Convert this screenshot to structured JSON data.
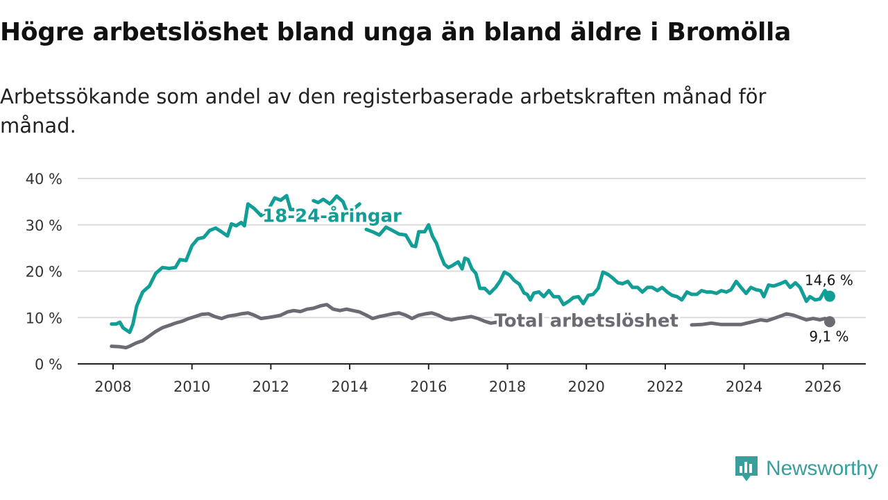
{
  "title": "Högre arbetslöshet bland unga än bland äldre i Bromölla",
  "subtitle": "Arbetssökande som andel av den registerbaserade arbetskraften månad för månad.",
  "brand": "Newsworthy",
  "colors": {
    "youth": "#119e96",
    "total": "#6e6a73",
    "grid": "#dcdcdc",
    "axis": "#222222",
    "brand": "#3a9e9b"
  },
  "chart_data": {
    "type": "line",
    "xlim": [
      2008,
      2026.8
    ],
    "ylim": [
      0,
      40
    ],
    "x_ticks": [
      2008,
      2010,
      2012,
      2014,
      2016,
      2018,
      2020,
      2022,
      2024,
      2026
    ],
    "x_tick_labels": [
      "2008",
      "2010",
      "2012",
      "2014",
      "2016",
      "2018",
      "2020",
      "2022",
      "2024",
      "2026"
    ],
    "y_ticks": [
      0,
      10,
      20,
      30,
      40
    ],
    "y_tick_labels": [
      "0 %",
      "10 %",
      "20 %",
      "30 %",
      "40 %"
    ],
    "series": [
      {
        "name": "18-24-åringar",
        "label": "18-24-åringar",
        "end_label": "14,6 %",
        "points": [
          [
            2007.96,
            8.6
          ],
          [
            2008.08,
            8.6
          ],
          [
            2008.17,
            9.0
          ],
          [
            2008.25,
            7.8
          ],
          [
            2008.42,
            6.8
          ],
          [
            2008.5,
            8.5
          ],
          [
            2008.6,
            12.5
          ],
          [
            2008.75,
            15.5
          ],
          [
            2008.92,
            16.8
          ],
          [
            2009.08,
            19.5
          ],
          [
            2009.25,
            20.8
          ],
          [
            2009.42,
            20.6
          ],
          [
            2009.58,
            20.8
          ],
          [
            2009.7,
            22.5
          ],
          [
            2009.85,
            22.3
          ],
          [
            2010.0,
            25.5
          ],
          [
            2010.15,
            27.0
          ],
          [
            2010.3,
            27.3
          ],
          [
            2010.45,
            28.8
          ],
          [
            2010.6,
            29.3
          ],
          [
            2010.75,
            28.5
          ],
          [
            2010.9,
            27.6
          ],
          [
            2011.0,
            30.2
          ],
          [
            2011.12,
            29.8
          ],
          [
            2011.25,
            30.5
          ],
          [
            2011.33,
            29.8
          ],
          [
            2011.42,
            34.5
          ],
          [
            2011.58,
            33.5
          ],
          [
            2011.75,
            32.0
          ],
          [
            2011.92,
            33.0
          ],
          [
            2012.1,
            35.8
          ],
          [
            2012.25,
            35.3
          ],
          [
            2012.4,
            36.3
          ],
          [
            2012.5,
            33.3
          ],
          [
            2012.62,
            33.3
          ],
          [
            2012.75,
            31.5
          ],
          [
            2012.9,
            31.3
          ]
        ],
        "points_2": [
          [
            2013.08,
            35.2
          ],
          [
            2013.2,
            34.8
          ],
          [
            2013.33,
            35.5
          ],
          [
            2013.5,
            34.5
          ],
          [
            2013.67,
            36.2
          ],
          [
            2013.83,
            35.0
          ],
          [
            2013.92,
            33.0
          ],
          [
            2014.08,
            33.3
          ],
          [
            2014.25,
            34.5
          ]
        ],
        "points_3": [
          [
            2014.42,
            29.0
          ],
          [
            2014.58,
            28.5
          ],
          [
            2014.75,
            27.8
          ],
          [
            2014.92,
            29.5
          ],
          [
            2015.08,
            28.8
          ],
          [
            2015.25,
            28.0
          ],
          [
            2015.42,
            27.8
          ],
          [
            2015.58,
            25.5
          ],
          [
            2015.67,
            25.3
          ],
          [
            2015.75,
            28.5
          ],
          [
            2015.9,
            28.5
          ],
          [
            2016.0,
            30.0
          ],
          [
            2016.1,
            27.5
          ],
          [
            2016.2,
            26.0
          ],
          [
            2016.3,
            23.5
          ],
          [
            2016.4,
            21.5
          ],
          [
            2016.5,
            20.8
          ],
          [
            2016.6,
            21.2
          ],
          [
            2016.75,
            22.0
          ],
          [
            2016.85,
            20.5
          ],
          [
            2016.92,
            22.8
          ],
          [
            2017.0,
            22.5
          ],
          [
            2017.1,
            20.5
          ],
          [
            2017.2,
            19.5
          ],
          [
            2017.3,
            16.3
          ],
          [
            2017.42,
            16.3
          ],
          [
            2017.55,
            15.2
          ],
          [
            2017.7,
            16.5
          ],
          [
            2017.82,
            18.0
          ],
          [
            2017.92,
            19.8
          ],
          [
            2018.05,
            19.2
          ],
          [
            2018.17,
            18.0
          ],
          [
            2018.3,
            17.2
          ],
          [
            2018.42,
            15.3
          ],
          [
            2018.5,
            15.0
          ],
          [
            2018.58,
            13.8
          ],
          [
            2018.67,
            15.3
          ],
          [
            2018.8,
            15.5
          ],
          [
            2018.92,
            14.5
          ],
          [
            2019.05,
            15.8
          ],
          [
            2019.17,
            14.5
          ],
          [
            2019.3,
            14.5
          ],
          [
            2019.42,
            12.8
          ],
          [
            2019.55,
            13.5
          ],
          [
            2019.67,
            14.3
          ],
          [
            2019.8,
            14.5
          ],
          [
            2019.92,
            13.0
          ],
          [
            2020.05,
            14.8
          ],
          [
            2020.17,
            15.0
          ],
          [
            2020.3,
            16.3
          ],
          [
            2020.42,
            19.8
          ],
          [
            2020.55,
            19.3
          ],
          [
            2020.67,
            18.5
          ],
          [
            2020.8,
            17.5
          ],
          [
            2020.92,
            17.3
          ],
          [
            2021.05,
            17.8
          ],
          [
            2021.17,
            16.5
          ],
          [
            2021.3,
            16.5
          ],
          [
            2021.42,
            15.5
          ],
          [
            2021.55,
            16.5
          ],
          [
            2021.67,
            16.5
          ],
          [
            2021.8,
            15.8
          ],
          [
            2021.92,
            16.5
          ],
          [
            2022.05,
            15.5
          ],
          [
            2022.17,
            14.8
          ],
          [
            2022.3,
            14.5
          ],
          [
            2022.42,
            13.8
          ],
          [
            2022.55,
            15.5
          ],
          [
            2022.67,
            15.0
          ],
          [
            2022.8,
            15.0
          ],
          [
            2022.92,
            15.8
          ],
          [
            2023.05,
            15.5
          ],
          [
            2023.17,
            15.5
          ],
          [
            2023.3,
            15.2
          ],
          [
            2023.42,
            15.8
          ],
          [
            2023.55,
            15.5
          ],
          [
            2023.67,
            16.0
          ],
          [
            2023.8,
            17.8
          ],
          [
            2023.92,
            16.5
          ],
          [
            2024.05,
            15.2
          ],
          [
            2024.17,
            16.5
          ],
          [
            2024.3,
            16.0
          ],
          [
            2024.42,
            15.8
          ],
          [
            2024.5,
            14.5
          ],
          [
            2024.62,
            17.0
          ],
          [
            2024.75,
            16.8
          ],
          [
            2024.92,
            17.3
          ],
          [
            2025.05,
            17.8
          ],
          [
            2025.17,
            16.5
          ],
          [
            2025.3,
            17.5
          ],
          [
            2025.42,
            16.5
          ],
          [
            2025.5,
            15.0
          ],
          [
            2025.58,
            13.5
          ],
          [
            2025.67,
            14.5
          ],
          [
            2025.8,
            13.8
          ],
          [
            2025.92,
            14.0
          ],
          [
            2026.05,
            15.8
          ],
          [
            2026.17,
            14.6
          ]
        ],
        "end_value": 14.6
      },
      {
        "name": "Total arbetslöshet",
        "label": "Total arbetslöshet",
        "end_label": "9,1 %",
        "points": [
          [
            2007.96,
            3.8
          ],
          [
            2008.17,
            3.7
          ],
          [
            2008.33,
            3.5
          ],
          [
            2008.42,
            3.8
          ],
          [
            2008.58,
            4.5
          ],
          [
            2008.75,
            5.0
          ],
          [
            2008.92,
            6.0
          ],
          [
            2009.08,
            7.0
          ],
          [
            2009.25,
            7.8
          ],
          [
            2009.42,
            8.3
          ],
          [
            2009.58,
            8.8
          ],
          [
            2009.75,
            9.2
          ],
          [
            2009.92,
            9.8
          ],
          [
            2010.08,
            10.2
          ],
          [
            2010.25,
            10.7
          ],
          [
            2010.42,
            10.8
          ],
          [
            2010.58,
            10.2
          ],
          [
            2010.75,
            9.8
          ],
          [
            2010.92,
            10.3
          ],
          [
            2011.08,
            10.5
          ],
          [
            2011.25,
            10.8
          ],
          [
            2011.42,
            11.0
          ],
          [
            2011.58,
            10.5
          ],
          [
            2011.75,
            9.8
          ],
          [
            2011.92,
            10.0
          ],
          [
            2012.08,
            10.2
          ],
          [
            2012.25,
            10.5
          ],
          [
            2012.42,
            11.2
          ],
          [
            2012.58,
            11.5
          ],
          [
            2012.75,
            11.3
          ],
          [
            2012.92,
            11.8
          ],
          [
            2013.08,
            12.0
          ],
          [
            2013.25,
            12.5
          ],
          [
            2013.42,
            12.8
          ],
          [
            2013.58,
            11.8
          ],
          [
            2013.75,
            11.5
          ],
          [
            2013.92,
            11.8
          ],
          [
            2014.08,
            11.5
          ],
          [
            2014.25,
            11.2
          ],
          [
            2014.42,
            10.5
          ],
          [
            2014.58,
            9.8
          ],
          [
            2014.75,
            10.2
          ],
          [
            2014.92,
            10.5
          ],
          [
            2015.08,
            10.8
          ],
          [
            2015.25,
            11.0
          ],
          [
            2015.42,
            10.5
          ],
          [
            2015.58,
            9.8
          ],
          [
            2015.75,
            10.5
          ],
          [
            2015.92,
            10.8
          ],
          [
            2016.08,
            11.0
          ],
          [
            2016.25,
            10.5
          ],
          [
            2016.42,
            9.8
          ],
          [
            2016.58,
            9.5
          ],
          [
            2016.75,
            9.8
          ],
          [
            2016.92,
            10.0
          ],
          [
            2017.08,
            10.2
          ],
          [
            2017.25,
            9.8
          ],
          [
            2017.42,
            9.2
          ],
          [
            2017.58,
            8.8
          ],
          [
            2017.75,
            9.0
          ]
        ],
        "points_2": [
          [
            2022.67,
            8.4
          ],
          [
            2022.92,
            8.5
          ],
          [
            2023.17,
            8.8
          ],
          [
            2023.42,
            8.5
          ],
          [
            2023.67,
            8.5
          ],
          [
            2023.92,
            8.5
          ],
          [
            2024.17,
            9.0
          ],
          [
            2024.42,
            9.5
          ],
          [
            2024.58,
            9.3
          ],
          [
            2024.75,
            9.8
          ],
          [
            2024.92,
            10.3
          ],
          [
            2025.08,
            10.8
          ],
          [
            2025.25,
            10.5
          ],
          [
            2025.42,
            10.0
          ],
          [
            2025.58,
            9.5
          ],
          [
            2025.75,
            9.8
          ],
          [
            2025.92,
            9.5
          ],
          [
            2026.05,
            9.8
          ],
          [
            2026.17,
            9.1
          ]
        ],
        "end_value": 9.1
      }
    ]
  }
}
